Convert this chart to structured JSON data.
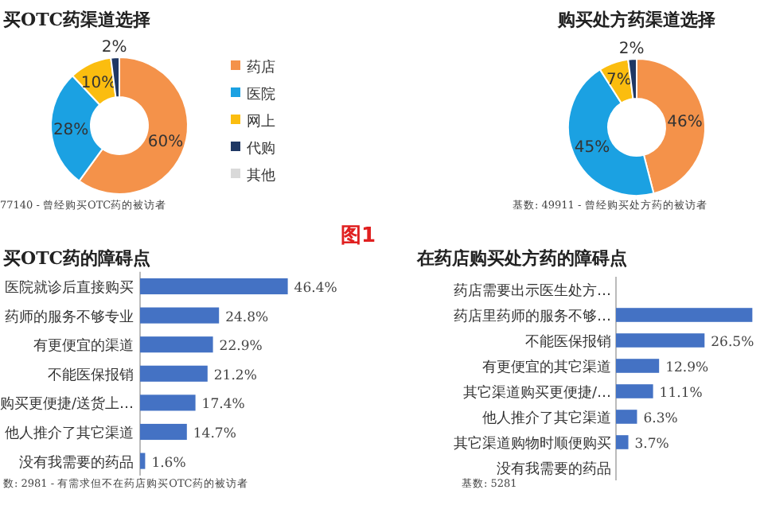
{
  "chart_data": [
    {
      "type": "donut",
      "title": "买OTC药渠道选择",
      "categories": [
        "药店",
        "医院",
        "网上",
        "代购",
        "其他"
      ],
      "values": [
        60,
        28,
        10,
        2,
        0
      ],
      "colors": [
        "#f4924a",
        "#1ba1e2",
        "#fbbd0f",
        "#1f3864",
        "#d9d9d9"
      ],
      "value_labels": [
        "60%",
        "28%",
        "10%",
        "2%",
        null
      ],
      "legend": "right",
      "annotations": [
        "77140 - 曾经购买OTC药的被访者"
      ]
    },
    {
      "type": "donut",
      "title": "购买处方药渠道选择",
      "categories": [
        null,
        null,
        null,
        null
      ],
      "values": [
        46,
        45,
        7,
        2
      ],
      "colors": [
        "#f4924a",
        "#1ba1e2",
        "#fbbd0f",
        "#1f3864"
      ],
      "value_labels": [
        "46%",
        "45%",
        "7%",
        "2%"
      ],
      "annotations": [
        "基数: 49911 - 曾经购买处方药的被访者"
      ]
    },
    {
      "type": "other",
      "annotations": [
        "图1"
      ]
    },
    {
      "type": "bar",
      "orientation": "horizontal",
      "title": "买OTC药的障碍点",
      "categories": [
        "医院就诊后直接购买",
        "药师的服务不够专业",
        "有更便宜的渠道",
        "不能医保报销",
        "购买更便捷/送货上…",
        "他人推介了其它渠道",
        "没有我需要的药品"
      ],
      "values": [
        46.4,
        24.8,
        22.9,
        21.2,
        17.4,
        14.7,
        1.6
      ],
      "color": "#4472c4",
      "value_labels": [
        "46.4%",
        "24.8%",
        "22.9%",
        "21.2%",
        "17.4%",
        "14.7%",
        "1.6%"
      ],
      "annotations": [
        "数: 2981 - 有需求但不在药店购买OTC药的被访者"
      ]
    },
    {
      "type": "bar",
      "orientation": "horizontal",
      "title": "在药店购买处方药的障碍点",
      "categories": [
        "药店需要出示医生处方…",
        "药店里药师的服务不够…",
        "不能医保报销",
        "有更便宜的其它渠道",
        "其它渠道购买更便捷/…",
        "他人推介了其它渠道",
        "其它渠道购物时顺便购买",
        "没有我需要的药品"
      ],
      "values": [
        null,
        40.8,
        26.5,
        12.9,
        11.1,
        6.3,
        3.7,
        null
      ],
      "color": "#4472c4",
      "value_labels": [
        null,
        null,
        "26.5%",
        "12.9%",
        "11.1%",
        "6.3%",
        "3.7%",
        null
      ],
      "annotations": [
        "基数: 5281"
      ]
    }
  ]
}
